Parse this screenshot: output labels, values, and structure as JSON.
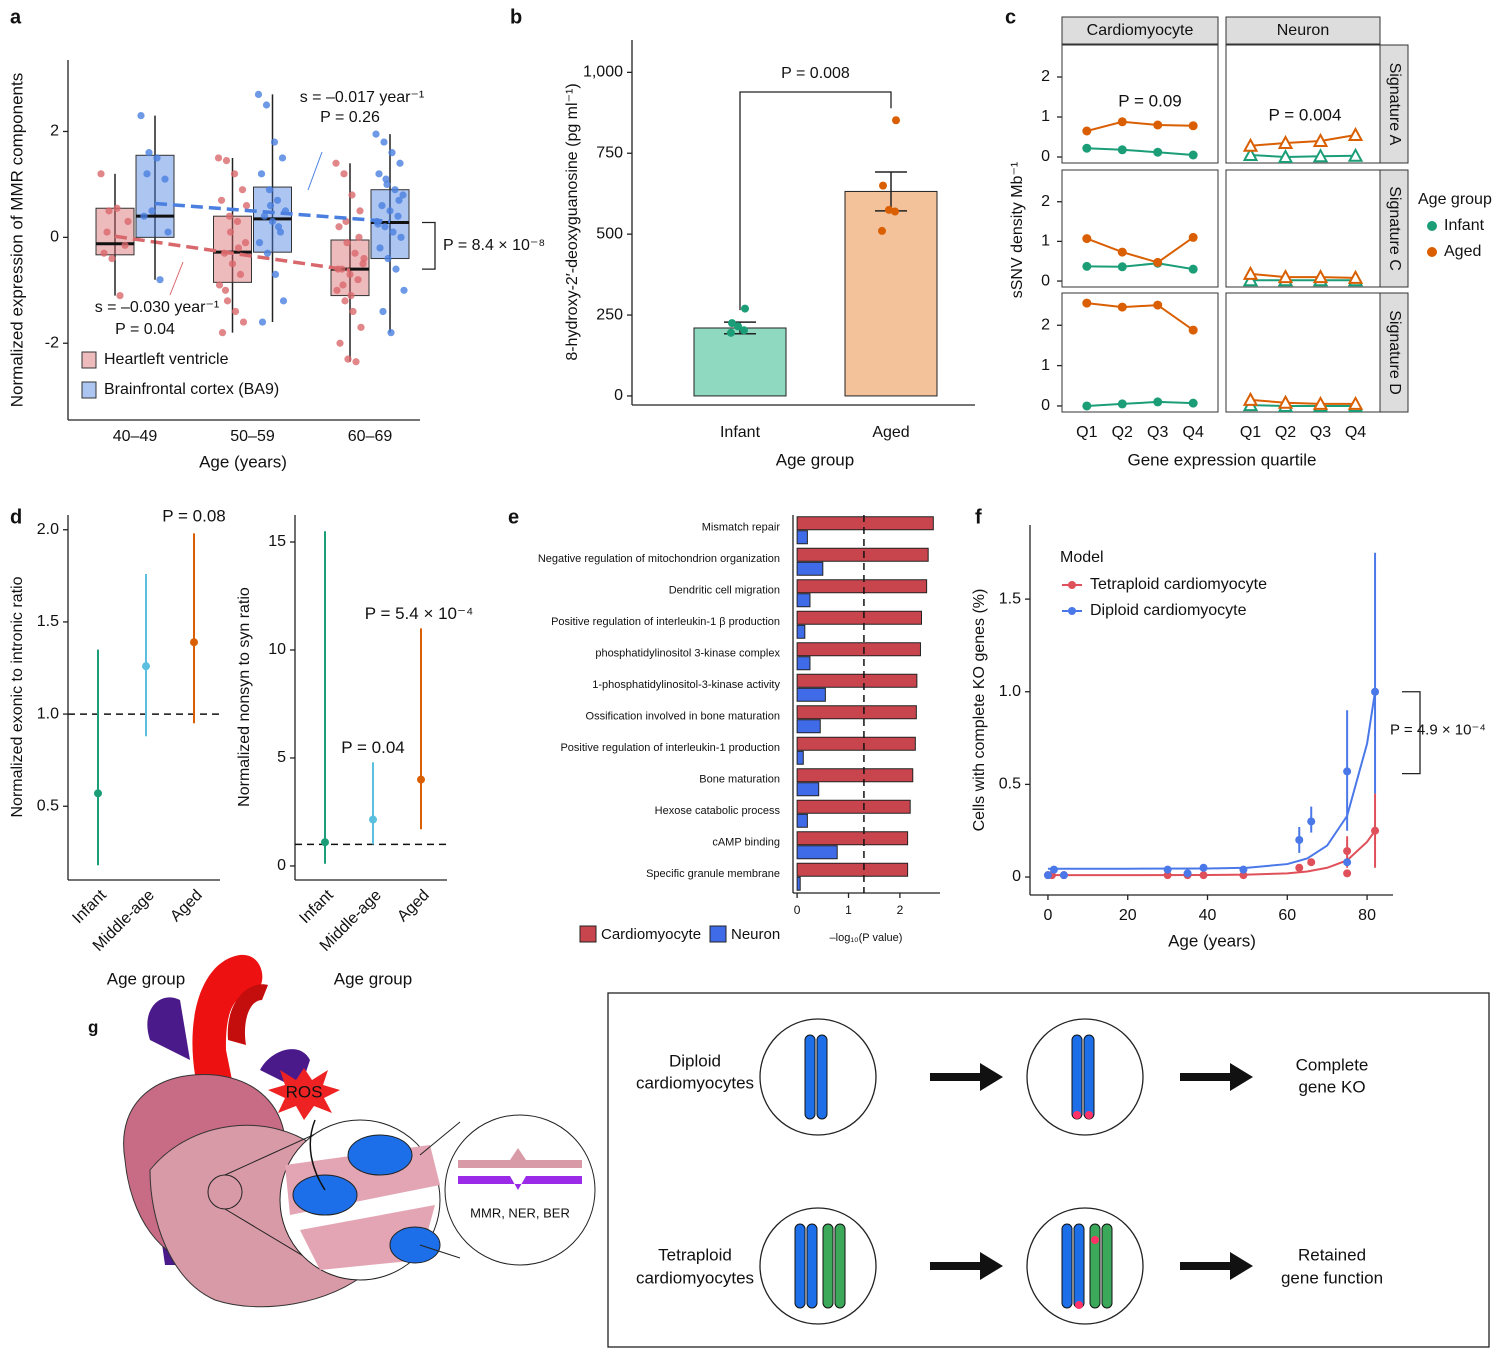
{
  "chart_data": [
    {
      "panel": "a",
      "type": "box",
      "x_label": "Age (years)",
      "y_label": "Normalized expression of MMR components",
      "categories": [
        "40–49",
        "50–59",
        "60–69"
      ],
      "ylim": [
        -3.45,
        3.35
      ],
      "yticks": [
        -2,
        0,
        2
      ],
      "legend": "bottom-left",
      "series": [
        {
          "name": "Heartleft ventricle",
          "color": "#d9686c",
          "whisker_low": [
            -1.1,
            -1.8,
            -2.35
          ],
          "q1": [
            -0.33,
            -0.85,
            -1.1
          ],
          "median": [
            -0.12,
            -0.28,
            -0.6
          ],
          "q3": [
            0.55,
            0.4,
            -0.05
          ],
          "whisker_high": [
            1.2,
            1.5,
            1.4
          ],
          "points": [
            [
              1.2,
              0.5,
              0.55,
              -0.15,
              -0.3,
              -0.4,
              -1.1,
              0.3,
              0.1
            ],
            [
              1.5,
              1.45,
              1.2,
              0.9,
              0.7,
              0.4,
              0.3,
              -0.1,
              -0.3,
              -0.5,
              -0.7,
              -0.9,
              -1.2,
              -1.4,
              -1.6,
              -1.8,
              0.1,
              -0.2,
              0.6,
              -1.0
            ],
            [
              1.4,
              1.2,
              0.8,
              0.5,
              0.2,
              -0.1,
              -0.3,
              -0.5,
              -0.6,
              -0.7,
              -0.8,
              -1.0,
              -1.2,
              -1.4,
              -1.7,
              -2.0,
              -2.3,
              -2.35,
              -0.4,
              -0.9,
              -1.1,
              0.0,
              -0.6,
              0.3
            ]
          ],
          "trend": [
            0.02,
            -0.62
          ],
          "slope_label": "s = –0.030 year⁻¹",
          "p_label": "P = 0.04"
        },
        {
          "name": "Brainfrontal cortex (BA9)",
          "color": "#4a7fe0",
          "whisker_low": [
            -0.8,
            -1.6,
            -1.8
          ],
          "q1": [
            0.0,
            -0.28,
            -0.4
          ],
          "median": [
            0.4,
            0.35,
            0.28
          ],
          "q3": [
            1.55,
            0.95,
            0.9
          ],
          "whisker_high": [
            2.3,
            2.7,
            1.95
          ],
          "points": [
            [
              2.3,
              1.6,
              1.5,
              1.1,
              0.4,
              0.5,
              -0.8,
              0.1,
              1.2
            ],
            [
              2.7,
              2.5,
              1.8,
              1.5,
              1.2,
              0.9,
              0.7,
              0.5,
              0.4,
              0.3,
              0.1,
              -0.1,
              -0.3,
              -0.7,
              -1.2,
              -1.6,
              0.6,
              0.2
            ],
            [
              1.95,
              1.8,
              1.6,
              1.4,
              1.2,
              1.0,
              0.9,
              0.8,
              0.6,
              0.5,
              0.4,
              0.3,
              0.2,
              0.1,
              0.0,
              -0.2,
              -0.4,
              -0.6,
              -1.0,
              -1.4,
              -1.8,
              0.7,
              0.25,
              1.1
            ]
          ],
          "trend": [
            0.64,
            0.3
          ],
          "slope_label": "s = –0.017 year⁻¹",
          "p_label": "P = 0.26"
        }
      ],
      "comparison_label": "P = 8.4 × 10⁻⁸"
    },
    {
      "panel": "b",
      "type": "bar",
      "x_label": "Age group",
      "y_label": "8-hydroxy-2′-deoxyguanosine (pg ml⁻¹)",
      "categories": [
        "Infant",
        "Aged"
      ],
      "values": [
        210,
        632
      ],
      "errors": [
        18,
        60
      ],
      "colors": [
        "#8fd9c0",
        "#f3c29b"
      ],
      "point_colors": [
        "#1b9e77",
        "#d95f02"
      ],
      "points": [
        [
          195,
          203,
          215,
          225,
          270
        ],
        [
          510,
          570,
          575,
          650,
          852
        ]
      ],
      "ylim": [
        -28,
        1100
      ],
      "yticks": [
        0,
        250,
        500,
        750,
        {
          "value": 1000,
          "label": "1,000"
        }
      ],
      "comparison_label": "P = 0.008"
    },
    {
      "panel": "c",
      "type": "line",
      "x_label": "Gene expression quartile",
      "y_label": "sSNV density Mb⁻¹",
      "categories": [
        "Q1",
        "Q2",
        "Q3",
        "Q4"
      ],
      "columns": [
        "Cardiomyocyte",
        "Neuron"
      ],
      "rows": [
        "Signature A",
        "Signature C",
        "Signature D"
      ],
      "ylim": [
        -0.15,
        2.8
      ],
      "yticks": [
        0,
        1,
        2
      ],
      "legend_title": "Age group",
      "legend": "right",
      "series": [
        {
          "name": "Infant",
          "color": "#1b9e77",
          "values": [
            [
              [
                0.22,
                0.18,
                0.12,
                0.05
              ],
              [
                0.05,
                0.0,
                0.02,
                0.03
              ]
            ],
            [
              [
                0.37,
                0.36,
                0.45,
                0.3
              ],
              [
                0.02,
                0.02,
                0.02,
                0.02
              ]
            ],
            [
              [
                0.0,
                0.05,
                0.1,
                0.07
              ],
              [
                0.02,
                0.0,
                0.0,
                0.0
              ]
            ]
          ]
        },
        {
          "name": "Aged",
          "color": "#d95f02",
          "values": [
            [
              [
                0.65,
                0.88,
                0.8,
                0.78
              ],
              [
                0.28,
                0.35,
                0.4,
                0.55
              ]
            ],
            [
              [
                1.07,
                0.73,
                0.47,
                1.1
              ],
              [
                0.18,
                0.1,
                0.1,
                0.08
              ]
            ],
            [
              [
                2.55,
                2.45,
                2.5,
                1.88
              ],
              [
                0.15,
                0.08,
                0.05,
                0.05
              ]
            ]
          ]
        }
      ],
      "p_labels": [
        "P = 0.09",
        "P = 0.004"
      ]
    },
    {
      "panel": "d",
      "type": "pointrange",
      "x_label": "Age group",
      "y_label": "Normalized exonic to intronic ratio",
      "categories": [
        "Infant",
        "Middle-age",
        "Aged"
      ],
      "colors": [
        "#1b9e77",
        "#5bbfe0",
        "#d95f02"
      ],
      "values": [
        0.57,
        1.26,
        1.39
      ],
      "lower": [
        0.18,
        0.88,
        0.95
      ],
      "upper": [
        1.35,
        1.76,
        1.98
      ],
      "reference_line": 1,
      "ylim": [
        0.1,
        2.08
      ],
      "yticks": [
        0.5,
        {
          "value": 1,
          "label": "1.0"
        },
        1.5,
        {
          "value": 2,
          "label": "2.0"
        }
      ],
      "p_labels": [
        null,
        null,
        "P = 0.08"
      ]
    },
    {
      "type": "pointrange",
      "x_label": "Age group",
      "y_label": "Normalized nonsyn to syn ratio",
      "categories": [
        "Infant",
        "Middle-age",
        "Aged"
      ],
      "colors": [
        "#1b9e77",
        "#5bbfe0",
        "#d95f02"
      ],
      "values": [
        1.1,
        2.15,
        4.0
      ],
      "lower": [
        0.1,
        1.0,
        1.7
      ],
      "upper": [
        15.5,
        4.8,
        11.0
      ],
      "reference_line": 1,
      "ylim": [
        -0.65,
        16.25
      ],
      "yticks": [
        0,
        5,
        10,
        15
      ],
      "p_labels": [
        null,
        "P = 0.04",
        "P = 5.4 × 10⁻⁴"
      ]
    },
    {
      "panel": "e",
      "type": "hbar",
      "x_label": "–log₁₀(P value)",
      "categories": [
        "Mismatch repair",
        "Negative regulation of mitochondrion organization",
        "Dendritic cell migration",
        "Positive regulation of interleukin-1 β production",
        "phosphatidylinositol 3-kinase complex",
        "1-phosphatidylinositol-3-kinase activity",
        "Ossification involved in bone maturation",
        "Positive regulation of interleukin-1 production",
        "Bone maturation",
        "Hexose catabolic process",
        "cAMP binding",
        "Specific granule membrane"
      ],
      "series": [
        {
          "name": "Cardiomyocyte",
          "color": "#c8454e",
          "values": [
            2.65,
            2.55,
            2.52,
            2.42,
            2.4,
            2.33,
            2.32,
            2.3,
            2.25,
            2.2,
            2.15,
            2.15
          ]
        },
        {
          "name": "Neuron",
          "color": "#3f6ae8",
          "values": [
            0.2,
            0.5,
            0.25,
            0.15,
            0.25,
            0.55,
            0.45,
            0.12,
            0.42,
            0.2,
            0.78,
            0.06
          ]
        }
      ],
      "xlim": [
        -0.08,
        2.78
      ],
      "xticks": [
        0,
        1,
        2
      ],
      "threshold": 1.3,
      "legend": "bottom"
    },
    {
      "panel": "f",
      "type": "scatter",
      "x_label": "Age (years)",
      "y_label": "Cells with complete KO genes (%)",
      "legend_title": "Model",
      "legend": "top-left",
      "series": [
        {
          "name": "Tetraploid cardiomyocyte",
          "color": "#e0505a",
          "x": [
            0,
            1,
            4,
            30,
            35,
            39,
            49,
            63,
            66,
            75,
            75,
            82
          ],
          "values": [
            0.01,
            0.01,
            0.01,
            0.01,
            0.01,
            0.01,
            0.01,
            0.05,
            0.08,
            0.14,
            0.02,
            0.25
          ],
          "lower": [
            null,
            null,
            null,
            null,
            null,
            null,
            null,
            null,
            null,
            0.05,
            null,
            0.05
          ],
          "upper": [
            null,
            null,
            null,
            null,
            null,
            null,
            null,
            null,
            null,
            0.22,
            null,
            0.45
          ],
          "fit_x": [
            0,
            20,
            40,
            50,
            60,
            65,
            70,
            75,
            80,
            82
          ],
          "fit_values": [
            0.01,
            0.01,
            0.011,
            0.013,
            0.02,
            0.03,
            0.05,
            0.09,
            0.19,
            0.25
          ]
        },
        {
          "name": "Diploid cardiomyocyte",
          "color": "#4a78e8",
          "x": [
            0,
            1.5,
            4,
            30,
            35,
            39,
            49,
            63,
            66,
            75,
            75,
            82
          ],
          "values": [
            0.01,
            0.04,
            0.01,
            0.04,
            0.02,
            0.05,
            0.04,
            0.2,
            0.3,
            0.57,
            0.08,
            1.0
          ],
          "lower": [
            null,
            null,
            null,
            null,
            null,
            null,
            null,
            0.13,
            0.24,
            0.25,
            null,
            0.45
          ],
          "upper": [
            null,
            null,
            null,
            null,
            null,
            null,
            null,
            0.27,
            0.38,
            0.9,
            null,
            1.75
          ],
          "fit_x": [
            0,
            20,
            40,
            50,
            60,
            65,
            70,
            75,
            80,
            82
          ],
          "fit_values": [
            0.045,
            0.045,
            0.046,
            0.05,
            0.07,
            0.1,
            0.17,
            0.33,
            0.72,
            1.0
          ]
        }
      ],
      "xlim": [
        -4.5,
        86.5
      ],
      "xticks": [
        0,
        20,
        40,
        60,
        80
      ],
      "ylim": [
        -0.097,
        1.9
      ],
      "yticks": [
        0,
        0.5,
        {
          "value": 1,
          "label": "1.0"
        },
        1.5
      ],
      "comparison_label": "P = 4.9 × 10⁻⁴"
    }
  ],
  "diagram": {
    "panel": "g",
    "ros": "ROS",
    "repair": "MMR, NER, BER",
    "rows": [
      {
        "label": [
          "Diploid",
          "cardiomyocytes"
        ],
        "outcome": [
          "Complete",
          "gene KO"
        ]
      },
      {
        "label": [
          "Tetraploid",
          "cardiomyocytes"
        ],
        "outcome": [
          "Retained",
          "gene function"
        ]
      }
    ]
  }
}
